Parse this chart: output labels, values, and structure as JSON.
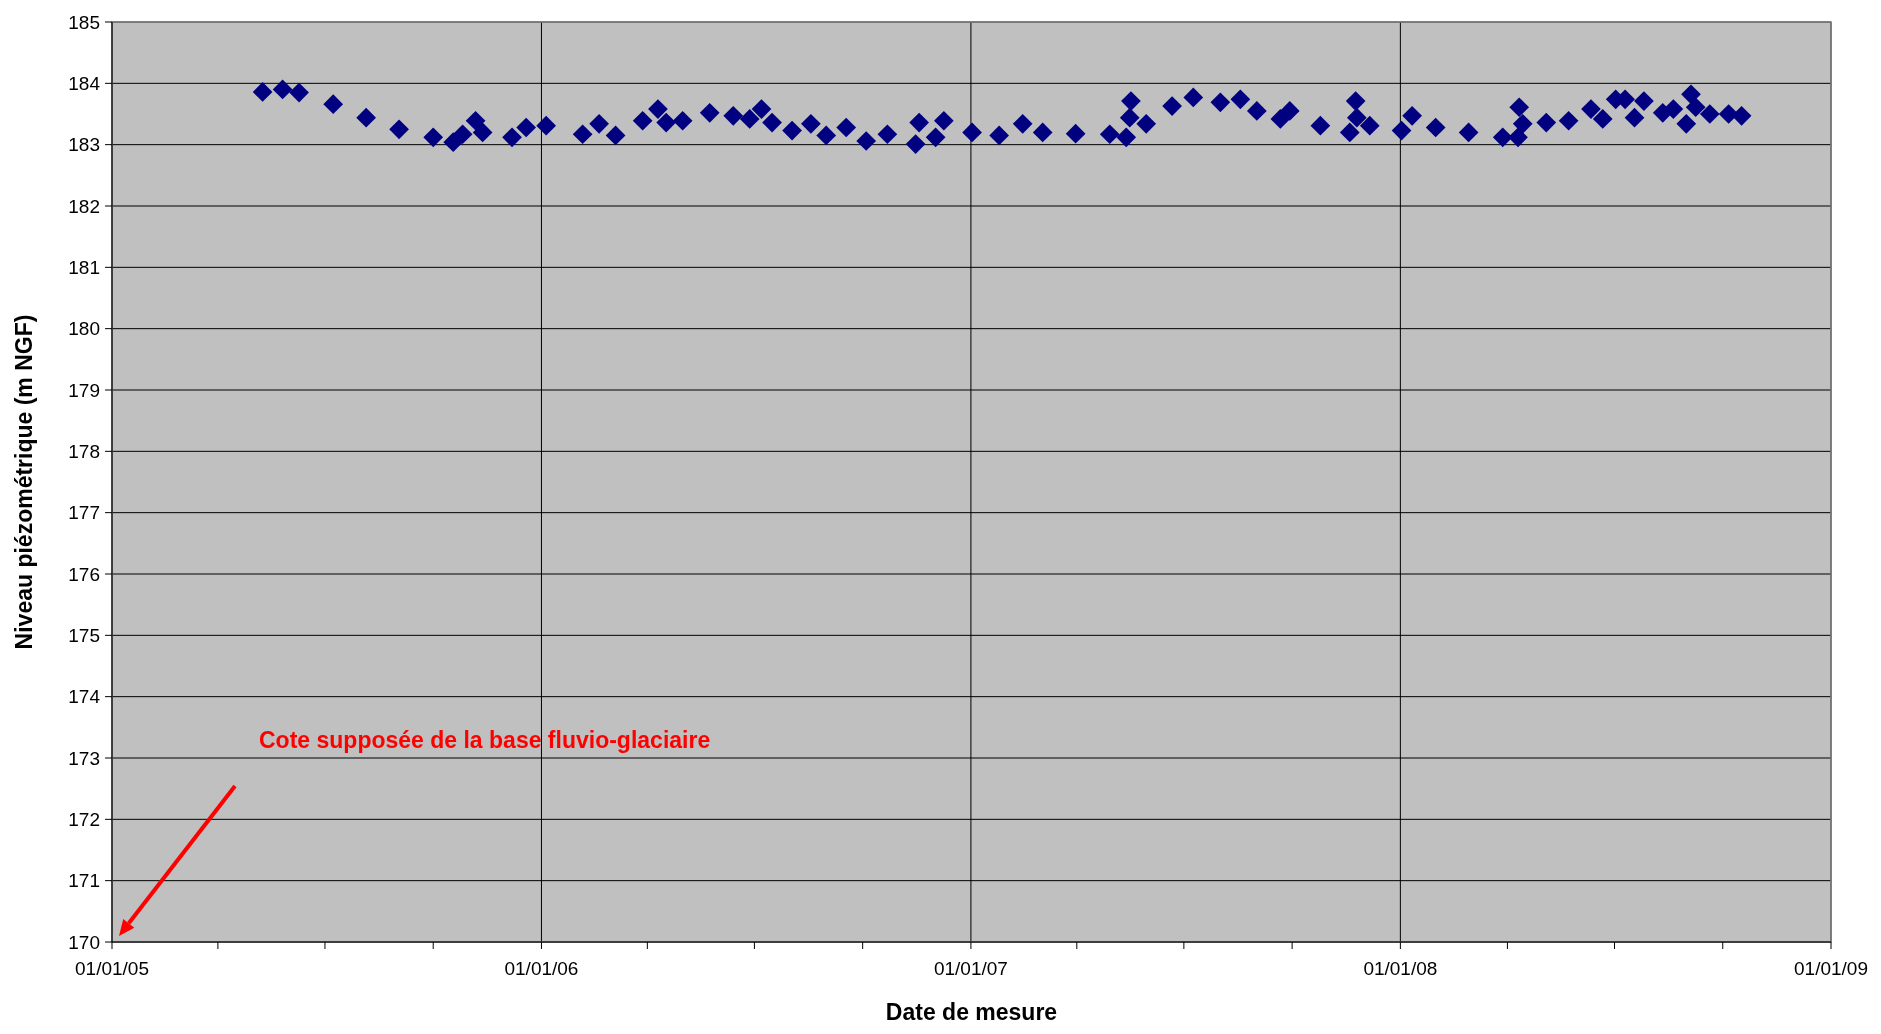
{
  "chart_data": {
    "type": "scatter",
    "xlabel": "Date de mesure",
    "ylabel": "Niveau piézométrique (m NGF)",
    "x": [
      "2005-05-09",
      "2005-05-26",
      "2005-06-09",
      "2005-07-08",
      "2005-08-05",
      "2005-09-02",
      "2005-10-01",
      "2005-10-18",
      "2005-10-26",
      "2005-11-06",
      "2005-11-12",
      "2005-12-07",
      "2005-12-19",
      "2006-01-05",
      "2006-02-05",
      "2006-02-19",
      "2006-03-05",
      "2006-03-28",
      "2006-04-10",
      "2006-04-17",
      "2006-05-01",
      "2006-05-24",
      "2006-06-13",
      "2006-06-27",
      "2006-07-07",
      "2006-07-16",
      "2006-08-02",
      "2006-08-18",
      "2006-08-31",
      "2006-09-17",
      "2006-10-04",
      "2006-10-22",
      "2006-11-15",
      "2006-11-18",
      "2006-12-02",
      "2006-12-09",
      "2007-01-02",
      "2007-01-25",
      "2007-02-14",
      "2007-03-03",
      "2007-03-31",
      "2007-04-29",
      "2007-05-13",
      "2007-05-16",
      "2007-05-17",
      "2007-05-30",
      "2007-06-21",
      "2007-07-09",
      "2007-08-01",
      "2007-08-18",
      "2007-09-01",
      "2007-09-21",
      "2007-09-29",
      "2007-10-25",
      "2007-11-19",
      "2007-11-24",
      "2007-11-25",
      "2007-12-06",
      "2008-01-02",
      "2008-01-11",
      "2008-01-31",
      "2008-02-28",
      "2008-03-28",
      "2008-04-10",
      "2008-04-11",
      "2008-04-14",
      "2008-05-04",
      "2008-05-23",
      "2008-06-11",
      "2008-06-21",
      "2008-07-02",
      "2008-07-10",
      "2008-07-18",
      "2008-07-26",
      "2008-08-11",
      "2008-08-20",
      "2008-08-31",
      "2008-09-04",
      "2008-09-08",
      "2008-09-20",
      "2008-10-06",
      "2008-10-17"
    ],
    "series": [
      {
        "color": "#000080",
        "values": [
          183.86,
          183.9,
          183.85,
          183.66,
          183.44,
          183.25,
          183.12,
          183.04,
          183.17,
          183.39,
          183.2,
          183.12,
          183.28,
          183.31,
          183.17,
          183.34,
          183.15,
          183.39,
          183.58,
          183.36,
          183.39,
          183.52,
          183.47,
          183.42,
          183.58,
          183.36,
          183.23,
          183.34,
          183.15,
          183.28,
          183.06,
          183.17,
          183.01,
          183.36,
          183.12,
          183.39,
          183.2,
          183.15,
          183.34,
          183.2,
          183.18,
          183.17,
          183.12,
          183.44,
          183.71,
          183.34,
          183.63,
          183.77,
          183.69,
          183.74,
          183.55,
          183.42,
          183.55,
          183.31,
          183.2,
          183.71,
          183.44,
          183.31,
          183.23,
          183.47,
          183.28,
          183.2,
          183.12,
          183.12,
          183.61,
          183.34,
          183.36,
          183.39,
          183.58,
          183.42,
          183.74,
          183.74,
          183.44,
          183.71,
          183.52,
          183.58,
          183.34,
          183.82,
          183.61,
          183.5,
          183.5,
          183.47
        ]
      }
    ],
    "marker": "diamond",
    "grid": true,
    "xlim": [
      "2005-01-01",
      "2009-01-01"
    ],
    "xticks": [
      {
        "value": "2005-01-01",
        "label": "01/01/05"
      },
      {
        "value": "2005-04-01",
        "label": null
      },
      {
        "value": "2005-07-01",
        "label": null
      },
      {
        "value": "2005-10-01",
        "label": null
      },
      {
        "value": "2006-01-01",
        "label": "01/01/06"
      },
      {
        "value": "2006-04-01",
        "label": null
      },
      {
        "value": "2006-07-01",
        "label": null
      },
      {
        "value": "2006-10-01",
        "label": null
      },
      {
        "value": "2007-01-01",
        "label": "01/01/07"
      },
      {
        "value": "2007-04-01",
        "label": null
      },
      {
        "value": "2007-07-01",
        "label": null
      },
      {
        "value": "2007-10-01",
        "label": null
      },
      {
        "value": "2008-01-01",
        "label": "01/01/08"
      },
      {
        "value": "2008-04-01",
        "label": null
      },
      {
        "value": "2008-07-01",
        "label": null
      },
      {
        "value": "2008-10-01",
        "label": null
      },
      {
        "value": "2009-01-01",
        "label": "01/01/09"
      }
    ],
    "ylim": [
      170,
      185
    ],
    "yticks": [
      170,
      171,
      172,
      173,
      174,
      175,
      176,
      177,
      178,
      179,
      180,
      181,
      182,
      183,
      184,
      185
    ],
    "annotations": [
      "Cote supposée de la base fluvio-glaciaire"
    ]
  }
}
